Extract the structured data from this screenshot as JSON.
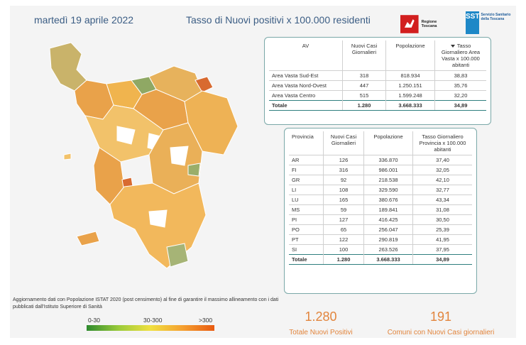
{
  "header": {
    "date": "martedì 19 aprile 2022",
    "title": "Tasso di Nuovi positivi x 100.000 residenti"
  },
  "logos": {
    "regione": "Regione Toscana",
    "sst_short": "SST",
    "sst_name": "Servizio Sanitario della Toscana"
  },
  "av_table": {
    "headers": [
      "AV",
      "Nuovi Casi Giornalieri",
      "Popolazione",
      "Tasso Giornaliero Area Vasta x 100.000 abitanti"
    ],
    "rows": [
      {
        "name": "Area Vasta Sud-Est",
        "cases": "318",
        "pop": "818.934",
        "rate": "38,83"
      },
      {
        "name": "Area Vasta Nord-Ovest",
        "cases": "447",
        "pop": "1.250.151",
        "rate": "35,76"
      },
      {
        "name": "Area Vasta Centro",
        "cases": "515",
        "pop": "1.599.248",
        "rate": "32,20"
      }
    ],
    "total": {
      "name": "Totale",
      "cases": "1.280",
      "pop": "3.668.333",
      "rate": "34,89"
    }
  },
  "prov_table": {
    "headers": [
      "Provincia",
      "Nuovi Casi Giornalieri",
      "Popolazione",
      "Tasso Giornaliero Provincia x 100.000 abitanti"
    ],
    "rows": [
      {
        "name": "AR",
        "cases": "126",
        "pop": "336.870",
        "rate": "37,40"
      },
      {
        "name": "FI",
        "cases": "316",
        "pop": "986.001",
        "rate": "32,05"
      },
      {
        "name": "GR",
        "cases": "92",
        "pop": "218.538",
        "rate": "42,10"
      },
      {
        "name": "LI",
        "cases": "108",
        "pop": "329.590",
        "rate": "32,77"
      },
      {
        "name": "LU",
        "cases": "165",
        "pop": "380.676",
        "rate": "43,34"
      },
      {
        "name": "MS",
        "cases": "59",
        "pop": "189.841",
        "rate": "31,08"
      },
      {
        "name": "PI",
        "cases": "127",
        "pop": "416.425",
        "rate": "30,50"
      },
      {
        "name": "PO",
        "cases": "65",
        "pop": "256.047",
        "rate": "25,39"
      },
      {
        "name": "PT",
        "cases": "122",
        "pop": "290.819",
        "rate": "41,95"
      },
      {
        "name": "SI",
        "cases": "100",
        "pop": "263.526",
        "rate": "37,95"
      }
    ],
    "total": {
      "name": "Totale",
      "cases": "1.280",
      "pop": "3.668.333",
      "rate": "34,89"
    }
  },
  "footnote": "Aggiornamento dati con Popolazione ISTAT 2020 (post censimento) al fine di garantire il massimo allineamento con i dati pubblicati dall'Istituto Superiore di Sanità",
  "legend": {
    "low": "0-30",
    "mid": "30-300",
    "high": ">300"
  },
  "kpis": {
    "total_value": "1.280",
    "total_label": "Totale Nuovi Positivi",
    "comuni_value": "191",
    "comuni_label": "Comuni con Nuovi Casi giornalieri"
  },
  "colors": {
    "accent": "#e2853d",
    "title": "#3b5d84",
    "table_border": "#2f7f7f"
  }
}
